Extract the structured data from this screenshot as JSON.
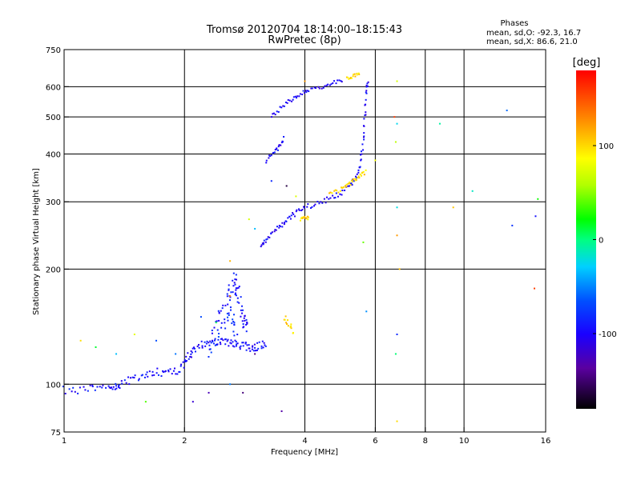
{
  "chart_data": {
    "type": "scatter",
    "title": "Tromsø 20120704 18:14:00–18:15:43",
    "subtitle": "RwPretec (8p)",
    "stats_title": "Phases",
    "stats_lines": [
      "mean, sd,O: -92.3, 16.7",
      "mean, sd,X:  86.6, 21.0"
    ],
    "xlabel": "Frequency [MHz]",
    "ylabel": "Stationary phase Virtual Height [km]",
    "x_scale": "log",
    "y_scale": "log",
    "xlim": [
      1,
      16
    ],
    "ylim": [
      75,
      750
    ],
    "x_ticks": [
      1,
      2,
      4,
      6,
      8,
      10,
      16
    ],
    "x_tick_labels": [
      "1",
      "2",
      "4",
      "6",
      "8",
      "10",
      "16"
    ],
    "x_grid": [
      2,
      4,
      6,
      8,
      10
    ],
    "y_ticks": [
      75,
      100,
      200,
      300,
      400,
      500,
      600,
      750
    ],
    "y_tick_labels": [
      "75",
      "100",
      "200",
      "300",
      "400",
      "500",
      "600",
      "750"
    ],
    "y_grid": [
      100,
      200,
      300,
      400,
      500,
      600
    ],
    "grid": true,
    "colorbar": {
      "label": "[deg]",
      "range": [
        -180,
        180
      ],
      "ticks": [
        100,
        0,
        -100
      ],
      "tick_labels": [
        "100",
        "0",
        "-100"
      ],
      "placement": "right"
    },
    "traces": [
      {
        "points": [
          [
            1.0,
            97
          ],
          [
            1.1,
            96
          ],
          [
            1.2,
            98
          ],
          [
            1.3,
            100
          ],
          [
            1.35,
            98
          ],
          [
            1.4,
            101
          ],
          [
            1.5,
            103
          ],
          [
            1.6,
            106
          ],
          [
            1.7,
            108
          ],
          [
            1.8,
            107
          ],
          [
            1.9,
            108
          ],
          [
            2.0,
            113
          ],
          [
            2.05,
            118
          ],
          [
            2.1,
            122
          ],
          [
            2.2,
            128
          ],
          [
            2.3,
            126
          ],
          [
            2.4,
            129
          ],
          [
            2.5,
            131
          ],
          [
            2.6,
            128
          ],
          [
            2.7,
            127
          ],
          [
            2.8,
            126
          ],
          [
            2.9,
            125
          ],
          [
            3.0,
            125
          ],
          [
            3.1,
            126
          ],
          [
            3.2,
            128
          ]
        ],
        "phase": -95,
        "spread": 0.025
      },
      {
        "points": [
          [
            2.35,
            140
          ],
          [
            2.45,
            150
          ],
          [
            2.55,
            165
          ],
          [
            2.6,
            180
          ],
          [
            2.65,
            190
          ],
          [
            2.7,
            175
          ],
          [
            2.75,
            165
          ],
          [
            2.8,
            150
          ],
          [
            2.85,
            145
          ],
          [
            2.9,
            140
          ]
        ],
        "phase": -95,
        "spread": 0.05
      },
      {
        "points": [
          [
            2.3,
            120
          ],
          [
            2.4,
            130
          ],
          [
            2.5,
            142
          ],
          [
            2.6,
            155
          ],
          [
            2.65,
            145
          ],
          [
            2.7,
            130
          ]
        ],
        "phase": -80,
        "spread": 0.04
      },
      {
        "points": [
          [
            3.1,
            228
          ],
          [
            3.2,
            240
          ],
          [
            3.35,
            252
          ],
          [
            3.5,
            262
          ],
          [
            3.65,
            272
          ],
          [
            3.8,
            280
          ],
          [
            4.0,
            290
          ],
          [
            4.3,
            297
          ],
          [
            4.6,
            305
          ],
          [
            4.9,
            315
          ],
          [
            5.2,
            330
          ],
          [
            5.4,
            350
          ],
          [
            5.5,
            380
          ],
          [
            5.6,
            430
          ],
          [
            5.65,
            500
          ],
          [
            5.7,
            580
          ],
          [
            5.75,
            625
          ]
        ],
        "phase": -100,
        "spread": 0.015
      },
      {
        "points": [
          [
            4.6,
            315
          ],
          [
            4.9,
            322
          ],
          [
            5.1,
            330
          ],
          [
            5.3,
            340
          ],
          [
            5.5,
            350
          ],
          [
            5.7,
            360
          ]
        ],
        "phase": 100,
        "spread": 0.012
      },
      {
        "points": [
          [
            3.3,
            500
          ],
          [
            3.5,
            530
          ],
          [
            3.7,
            555
          ],
          [
            3.9,
            575
          ],
          [
            4.1,
            590
          ],
          [
            4.4,
            600
          ],
          [
            4.7,
            615
          ],
          [
            5.0,
            625
          ]
        ],
        "phase": -100,
        "spread": 0.012
      },
      {
        "points": [
          [
            5.1,
            630
          ],
          [
            5.3,
            640
          ],
          [
            5.5,
            648
          ]
        ],
        "phase": 100,
        "spread": 0.01
      },
      {
        "points": [
          [
            3.2,
            385
          ],
          [
            3.35,
            400
          ],
          [
            3.45,
            420
          ],
          [
            3.55,
            440
          ]
        ],
        "phase": -100,
        "spread": 0.015
      },
      {
        "points": [
          [
            3.9,
            270
          ],
          [
            4.0,
            272
          ],
          [
            4.1,
            272
          ]
        ],
        "phase": 100,
        "spread": 0.01
      },
      {
        "points": [
          [
            3.55,
            150
          ],
          [
            3.65,
            143
          ],
          [
            3.75,
            137
          ]
        ],
        "phase": 100,
        "spread": 0.02
      },
      {
        "points": [
          [
            1.1,
            130
          ],
          [
            1.2,
            125
          ],
          [
            1.35,
            120
          ],
          [
            1.5,
            135
          ],
          [
            1.7,
            130
          ],
          [
            1.9,
            120
          ],
          [
            2.2,
            150
          ],
          [
            2.4,
            145
          ],
          [
            2.6,
            170
          ],
          [
            3.0,
            120
          ],
          [
            2.1,
            90
          ],
          [
            2.3,
            95
          ],
          [
            1.6,
            90
          ],
          [
            2.6,
            100
          ],
          [
            2.8,
            95
          ],
          [
            3.5,
            85
          ],
          [
            6.8,
            620
          ],
          [
            6.7,
            500
          ],
          [
            6.8,
            480
          ],
          [
            6.75,
            430
          ],
          [
            6.8,
            290
          ],
          [
            6.8,
            245
          ],
          [
            6.9,
            200
          ],
          [
            6.8,
            135
          ],
          [
            6.75,
            120
          ],
          [
            6.8,
            80
          ],
          [
            8.7,
            480
          ],
          [
            9.4,
            290
          ],
          [
            10.5,
            320
          ],
          [
            12.8,
            520
          ],
          [
            13.2,
            260
          ],
          [
            15.1,
            275
          ],
          [
            15.3,
            305
          ],
          [
            15.0,
            178
          ],
          [
            5.6,
            235
          ],
          [
            6.0,
            385
          ],
          [
            5.7,
            155
          ],
          [
            3.3,
            340
          ],
          [
            3.6,
            330
          ],
          [
            3.8,
            310
          ],
          [
            4.0,
            620
          ],
          [
            2.6,
            210
          ],
          [
            3.0,
            255
          ],
          [
            2.9,
            270
          ]
        ],
        "phase": -40,
        "spread": 0.0
      }
    ]
  }
}
